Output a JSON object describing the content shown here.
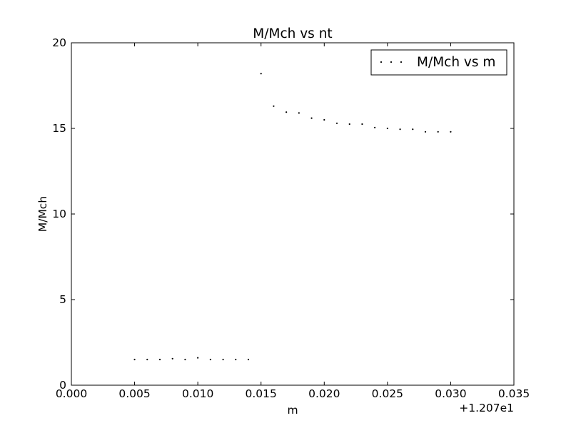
{
  "chart_data": {
    "type": "scatter",
    "title": "M/Mch vs nt",
    "xlabel": "m",
    "ylabel": "M/Mch",
    "x_offset_label": "+1.207e1",
    "xlim": [
      0.0,
      0.035
    ],
    "ylim": [
      0,
      20
    ],
    "x_ticks": [
      0.0,
      0.005,
      0.01,
      0.015,
      0.02,
      0.025,
      0.03,
      0.035
    ],
    "x_tick_labels": [
      "0.000",
      "0.005",
      "0.010",
      "0.015",
      "0.020",
      "0.025",
      "0.030",
      "0.035"
    ],
    "y_ticks": [
      0,
      5,
      10,
      15,
      20
    ],
    "y_tick_labels": [
      "0",
      "5",
      "10",
      "15",
      "20"
    ],
    "grid": false,
    "legend_position": "top-right",
    "series": [
      {
        "name": "M/Mch vs m",
        "color": "#000000",
        "marker": "point",
        "x": [
          0.005,
          0.006,
          0.007,
          0.008,
          0.009,
          0.01,
          0.011,
          0.012,
          0.013,
          0.014,
          0.015,
          0.016,
          0.017,
          0.018,
          0.019,
          0.02,
          0.021,
          0.022,
          0.023,
          0.024,
          0.025,
          0.026,
          0.027,
          0.028,
          0.029,
          0.03
        ],
        "y": [
          1.5,
          1.5,
          1.5,
          1.55,
          1.5,
          1.6,
          1.5,
          1.5,
          1.5,
          1.5,
          18.2,
          16.3,
          15.95,
          15.9,
          15.6,
          15.5,
          15.3,
          15.25,
          15.25,
          15.05,
          15.0,
          14.95,
          14.95,
          14.8,
          14.8,
          14.8
        ]
      }
    ]
  }
}
